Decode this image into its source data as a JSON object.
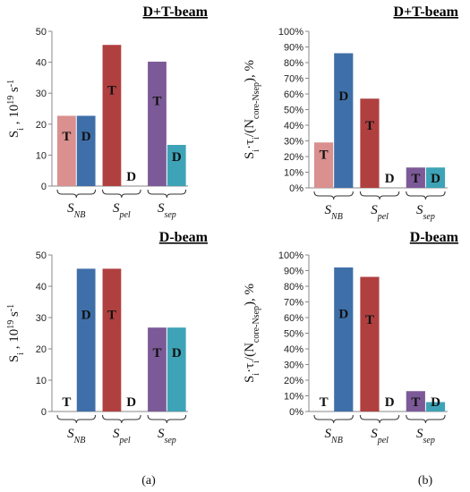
{
  "colors": {
    "light_red": "#d9908f",
    "dark_red": "#b04040",
    "blue": "#3f6fa9",
    "purple": "#7c5a98",
    "teal": "#3ea3b6"
  },
  "panel_labels": [
    "(a)",
    "(b)"
  ],
  "ylabel_a": "S_i , 10^19 s^-1",
  "ylabel_b": "S_i·τ_i/(N_core-N_sep), %",
  "chart_data": [
    {
      "type": "bar",
      "title": "D+T-beam",
      "ylabel": "S_i , 10^19 s^-1",
      "ylim": [
        0,
        50
      ],
      "yticks": [
        "0",
        "10",
        "20",
        "30",
        "40",
        "50"
      ],
      "categories": [
        "S_NB",
        "S_pel",
        "S_sep"
      ],
      "bars": [
        {
          "category": "S_NB",
          "label": "T",
          "value": 22.7,
          "color": "#d9908f"
        },
        {
          "category": "S_NB",
          "label": "D",
          "value": 22.7,
          "color": "#3f6fa9"
        },
        {
          "category": "S_pel",
          "label": "T",
          "value": 45.6,
          "color": "#b04040"
        },
        {
          "category": "S_pel",
          "label": "D",
          "value": 0,
          "color": "#3f6fa9"
        },
        {
          "category": "S_sep",
          "label": "T",
          "value": 40.2,
          "color": "#7c5a98"
        },
        {
          "category": "S_sep",
          "label": "D",
          "value": 13.3,
          "color": "#3ea3b6"
        }
      ]
    },
    {
      "type": "bar",
      "title": "D+T-beam",
      "ylabel": "S_i·τ_i/(N_core-N_sep), %",
      "ylim": [
        0,
        100
      ],
      "yticks": [
        "0%",
        "10%",
        "20%",
        "30%",
        "40%",
        "50%",
        "60%",
        "70%",
        "80%",
        "90%",
        "100%"
      ],
      "categories": [
        "S_NB",
        "S_pel",
        "S_sep"
      ],
      "bars": [
        {
          "category": "S_NB",
          "label": "T",
          "value": 29,
          "color": "#d9908f"
        },
        {
          "category": "S_NB",
          "label": "D",
          "value": 86,
          "color": "#3f6fa9"
        },
        {
          "category": "S_pel",
          "label": "T",
          "value": 57,
          "color": "#b04040"
        },
        {
          "category": "S_pel",
          "label": "D",
          "value": 0,
          "color": "#3f6fa9"
        },
        {
          "category": "S_sep",
          "label": "T",
          "value": 13,
          "color": "#7c5a98"
        },
        {
          "category": "S_sep",
          "label": "D",
          "value": 13,
          "color": "#3ea3b6"
        }
      ]
    },
    {
      "type": "bar",
      "title": "D-beam",
      "ylabel": "S_i , 10^19 s^-1",
      "ylim": [
        0,
        50
      ],
      "yticks": [
        "0",
        "10",
        "20",
        "30",
        "40",
        "50"
      ],
      "categories": [
        "S_NB",
        "S_pel",
        "S_sep"
      ],
      "bars": [
        {
          "category": "S_NB",
          "label": "T",
          "value": 0,
          "color": "#d9908f"
        },
        {
          "category": "S_NB",
          "label": "D",
          "value": 45.6,
          "color": "#3f6fa9"
        },
        {
          "category": "S_pel",
          "label": "T",
          "value": 45.6,
          "color": "#b04040"
        },
        {
          "category": "S_pel",
          "label": "D",
          "value": 0,
          "color": "#3f6fa9"
        },
        {
          "category": "S_sep",
          "label": "T",
          "value": 26.8,
          "color": "#7c5a98"
        },
        {
          "category": "S_sep",
          "label": "D",
          "value": 26.8,
          "color": "#3ea3b6"
        }
      ]
    },
    {
      "type": "bar",
      "title": "D-beam",
      "ylabel": "S_i·τ_i/(N_core-N_sep), %",
      "ylim": [
        0,
        100
      ],
      "yticks": [
        "0%",
        "10%",
        "20%",
        "30%",
        "40%",
        "50%",
        "60%",
        "70%",
        "80%",
        "90%",
        "100%"
      ],
      "categories": [
        "S_NB",
        "S_pel",
        "S_sep"
      ],
      "bars": [
        {
          "category": "S_NB",
          "label": "T",
          "value": 0,
          "color": "#d9908f"
        },
        {
          "category": "S_NB",
          "label": "D",
          "value": 92,
          "color": "#3f6fa9"
        },
        {
          "category": "S_pel",
          "label": "T",
          "value": 86,
          "color": "#b04040"
        },
        {
          "category": "S_pel",
          "label": "D",
          "value": 0,
          "color": "#3f6fa9"
        },
        {
          "category": "S_sep",
          "label": "T",
          "value": 13,
          "color": "#7c5a98"
        },
        {
          "category": "S_sep",
          "label": "D",
          "value": 6,
          "color": "#3ea3b6"
        }
      ]
    }
  ]
}
